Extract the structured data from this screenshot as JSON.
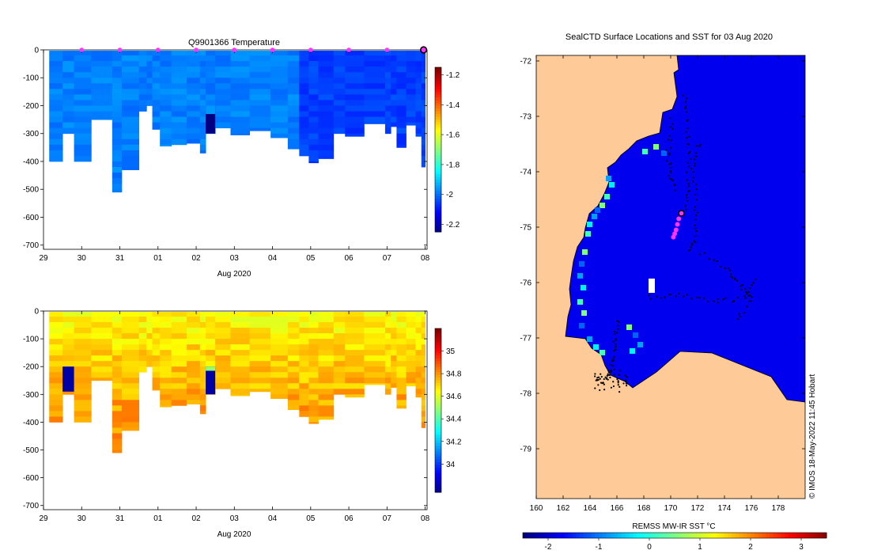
{
  "chart_data": [
    {
      "type": "heatmap",
      "title": "Q9901366  Temperature",
      "xlabel": "Aug 2020",
      "ylabel": "",
      "x_tick_labels": [
        "29",
        "30",
        "31",
        "01",
        "02",
        "03",
        "04",
        "05",
        "06",
        "07",
        "08"
      ],
      "x_tick_days": [
        0,
        1,
        2,
        3,
        4,
        5,
        6,
        7,
        8,
        9,
        10
      ],
      "xlim_days": [
        0,
        10.05
      ],
      "y_ticks": [
        0,
        -100,
        -200,
        -300,
        -400,
        -500,
        -600,
        -700
      ],
      "ylim": [
        -715,
        0
      ],
      "colorbar": {
        "range": [
          -2.25,
          -1.15
        ],
        "ticks": [
          -1.2,
          -1.4,
          -1.6,
          -1.8,
          -2,
          -2.2
        ]
      },
      "profile_markers_days": [
        1,
        2,
        3,
        4,
        5,
        6,
        7,
        8,
        9
      ],
      "latest_marker_day": 10,
      "value_range": [
        -2.05,
        -1.9
      ],
      "profiles": [
        {
          "start": 0.15,
          "end": 0.5,
          "depth": 400
        },
        {
          "start": 0.5,
          "end": 0.8,
          "depth": 300
        },
        {
          "start": 0.8,
          "end": 1.25,
          "depth": 400
        },
        {
          "start": 1.25,
          "end": 1.8,
          "depth": 250
        },
        {
          "start": 1.8,
          "end": 2.05,
          "depth": 510
        },
        {
          "start": 2.05,
          "end": 2.5,
          "depth": 430
        },
        {
          "start": 2.5,
          "end": 2.7,
          "depth": 220
        },
        {
          "start": 2.7,
          "end": 2.85,
          "depth": 200
        },
        {
          "start": 2.85,
          "end": 3.05,
          "depth": 285
        },
        {
          "start": 3.05,
          "end": 3.35,
          "depth": 345
        },
        {
          "start": 3.35,
          "end": 3.75,
          "depth": 340
        },
        {
          "start": 3.75,
          "end": 4.1,
          "depth": 335
        },
        {
          "start": 4.1,
          "end": 4.25,
          "depth": 370
        },
        {
          "start": 4.25,
          "end": 4.5,
          "depth": 300
        },
        {
          "start": 4.5,
          "end": 4.9,
          "depth": 280
        },
        {
          "start": 4.9,
          "end": 5.4,
          "depth": 305
        },
        {
          "start": 5.4,
          "end": 5.95,
          "depth": 290
        },
        {
          "start": 5.95,
          "end": 6.4,
          "depth": 315
        },
        {
          "start": 6.4,
          "end": 6.7,
          "depth": 355
        },
        {
          "start": 6.7,
          "end": 6.95,
          "depth": 380
        },
        {
          "start": 6.95,
          "end": 7.2,
          "depth": 405
        },
        {
          "start": 7.2,
          "end": 7.6,
          "depth": 390
        },
        {
          "start": 7.6,
          "end": 7.9,
          "depth": 300
        },
        {
          "start": 7.9,
          "end": 8.4,
          "depth": 310
        },
        {
          "start": 8.4,
          "end": 8.95,
          "depth": 265
        },
        {
          "start": 8.95,
          "end": 9.1,
          "depth": 300
        },
        {
          "start": 9.1,
          "end": 9.25,
          "depth": 275
        },
        {
          "start": 9.25,
          "end": 9.5,
          "depth": 350
        },
        {
          "start": 9.5,
          "end": 9.75,
          "depth": 270
        },
        {
          "start": 9.75,
          "end": 9.9,
          "depth": 310
        },
        {
          "start": 9.9,
          "end": 10.0,
          "depth": 420
        }
      ],
      "anomalies": [
        {
          "start": 4.25,
          "end": 4.5,
          "top": 200,
          "bottom": 300,
          "value": -2.25
        },
        {
          "start": 4.25,
          "end": 4.5,
          "top": 200,
          "bottom": 230,
          "value": -1.95
        }
      ]
    },
    {
      "type": "heatmap",
      "title": "",
      "xlabel": "Aug 2020",
      "ylabel": "",
      "x_tick_labels": [
        "29",
        "30",
        "31",
        "01",
        "02",
        "03",
        "04",
        "05",
        "06",
        "07",
        "08"
      ],
      "x_tick_days": [
        0,
        1,
        2,
        3,
        4,
        5,
        6,
        7,
        8,
        9,
        10
      ],
      "xlim_days": [
        0,
        10.05
      ],
      "y_ticks": [
        0,
        -100,
        -200,
        -300,
        -400,
        -500,
        -600,
        -700
      ],
      "ylim": [
        -715,
        0
      ],
      "colorbar": {
        "range": [
          33.75,
          35.2
        ],
        "ticks": [
          35,
          34.8,
          34.6,
          34.4,
          34.2,
          34
        ]
      },
      "value_range_surface": [
        34.6,
        34.72
      ],
      "value_range_deep": [
        34.74,
        34.88
      ],
      "anomalies": [
        {
          "start": 0.5,
          "end": 0.8,
          "top": 200,
          "bottom": 290,
          "value": 33.8
        },
        {
          "start": 4.25,
          "end": 4.5,
          "top": 200,
          "bottom": 300,
          "value": 33.8
        },
        {
          "start": 4.25,
          "end": 4.5,
          "top": 200,
          "bottom": 215,
          "value": 34.5
        }
      ]
    },
    {
      "type": "map",
      "title": "SealCTD Surface Locations and SST for 03 Aug 2020",
      "xlabel": "",
      "x_tick_labels": [
        "160",
        "162",
        "164",
        "166",
        "168",
        "170",
        "172",
        "174",
        "176",
        "178"
      ],
      "x_ticks": [
        160,
        162,
        164,
        166,
        168,
        170,
        172,
        174,
        176,
        178
      ],
      "y_tick_labels": [
        "-72",
        "-73",
        "-74",
        "-75",
        "-76",
        "-77",
        "-78",
        "-79"
      ],
      "y_ticks": [
        -72,
        -73,
        -74,
        -75,
        -76,
        -77,
        -78,
        -79
      ],
      "lon_range": [
        160,
        180
      ],
      "lat_range": [
        -79.9,
        -71.9
      ],
      "colorbar": {
        "label": "REMSS MW-IR SST °C",
        "range": [
          -2.5,
          3.5
        ],
        "ticks": [
          -2,
          -1,
          0,
          1,
          2,
          3
        ]
      },
      "sea_value": -1.85,
      "current_position": {
        "lon": 170.8,
        "lat": -74.75
      },
      "recent_positions": [
        {
          "lon": 170.6,
          "lat": -74.85
        },
        {
          "lon": 170.5,
          "lat": -74.95
        },
        {
          "lon": 170.4,
          "lat": -75.05
        },
        {
          "lon": 170.3,
          "lat": -75.12
        },
        {
          "lon": 170.2,
          "lat": -75.18
        }
      ],
      "credit": "© IMOS 18-May-2022 11:45 Hobart"
    }
  ],
  "colors": {
    "profile_marker": "#ff33ff",
    "land": "#fecb98",
    "track": "#000000"
  }
}
